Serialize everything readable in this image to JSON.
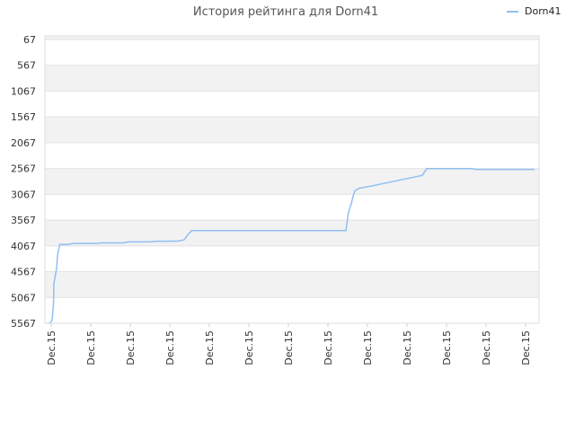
{
  "chart_data": {
    "type": "line",
    "title": "История рейтинга для Dorn41",
    "legend": {
      "position": "top-right"
    },
    "series": [
      {
        "name": "Dorn41",
        "color": "#90c0f0",
        "points": [
          [
            0.5,
            5567
          ],
          [
            1.2,
            5560
          ],
          [
            1.6,
            5500
          ],
          [
            1.9,
            5200
          ],
          [
            2.0,
            4800
          ],
          [
            2.3,
            4650
          ],
          [
            2.6,
            4500
          ],
          [
            2.8,
            4250
          ],
          [
            3.3,
            4040
          ],
          [
            5.0,
            4040
          ],
          [
            6.5,
            4020
          ],
          [
            11.5,
            4020
          ],
          [
            12.5,
            4010
          ],
          [
            17.5,
            4010
          ],
          [
            18.5,
            3990
          ],
          [
            23.5,
            3990
          ],
          [
            24.5,
            3980
          ],
          [
            29.5,
            3975
          ],
          [
            30.5,
            3960
          ],
          [
            31.0,
            3950
          ],
          [
            31.8,
            3850
          ],
          [
            32.7,
            3770
          ],
          [
            50.0,
            3770
          ],
          [
            67.0,
            3770
          ],
          [
            67.2,
            3650
          ],
          [
            67.5,
            3450
          ],
          [
            67.8,
            3350
          ],
          [
            68.2,
            3250
          ],
          [
            68.6,
            3100
          ],
          [
            69.0,
            3000
          ],
          [
            70.0,
            2950
          ],
          [
            73.0,
            2900
          ],
          [
            84.0,
            2700
          ],
          [
            85.0,
            2570
          ],
          [
            95.0,
            2570
          ],
          [
            96.0,
            2585
          ],
          [
            109.0,
            2585
          ]
        ]
      }
    ],
    "x_categories": [
      "Dec.15",
      "Dec.15",
      "Dec.15",
      "Dec.15",
      "Dec.15",
      "Dec.15",
      "Dec.15",
      "Dec.15",
      "Dec.15",
      "Dec.15",
      "Dec.15",
      "Dec.15",
      "Dec.15"
    ],
    "y_ticks": [
      67,
      567,
      1067,
      1567,
      2067,
      2567,
      3067,
      3567,
      4067,
      4567,
      5067,
      5567
    ],
    "ylim": [
      67,
      5567
    ],
    "y_inverted": true,
    "band_colors": [
      "#ffffff",
      "#f2f2f2"
    ],
    "grid": true
  }
}
